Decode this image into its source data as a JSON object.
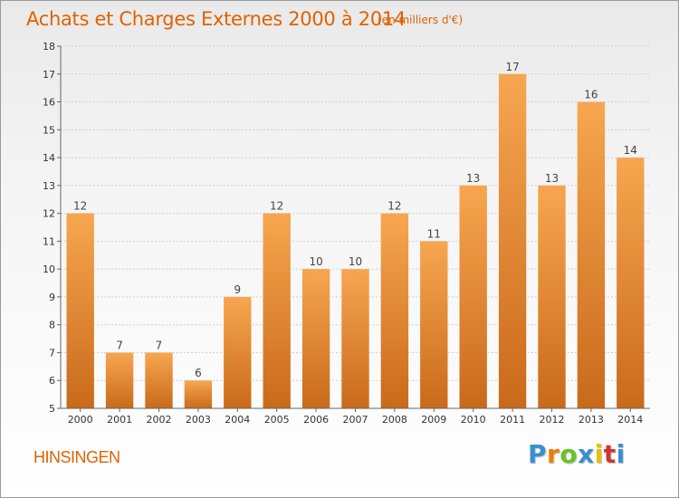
{
  "header": {
    "title": "Achats et Charges Externes 2000 à 2014",
    "subtitle": "(en milliers d'€)"
  },
  "commune": "HINSINGEN",
  "logo": {
    "text": "Proxiti",
    "letter_colors": [
      "#3a8fd0",
      "#f07c00",
      "#6cbf2a",
      "#3a8fd0",
      "#e8c000",
      "#d23232",
      "#3a8fd0"
    ]
  },
  "colors": {
    "accent": "#e06200",
    "bar_top": "#f7a650",
    "bar_bottom": "#c96a1a"
  },
  "chart_data": {
    "type": "bar",
    "categories": [
      "2000",
      "2001",
      "2002",
      "2003",
      "2004",
      "2005",
      "2006",
      "2007",
      "2008",
      "2009",
      "2010",
      "2011",
      "2012",
      "2013",
      "2014"
    ],
    "values": [
      12,
      7,
      7,
      6,
      9,
      12,
      10,
      10,
      12,
      11,
      13,
      17,
      13,
      16,
      14
    ],
    "data_labels": [
      "12",
      "7",
      "7",
      "6",
      "9",
      "12",
      "10",
      "10",
      "12",
      "11",
      "13",
      "17",
      "13",
      "16",
      "14"
    ],
    "title": "Achats et Charges Externes 2000 à 2014",
    "subtitle": "(en milliers d'€)",
    "ylim": [
      5,
      18
    ],
    "yticks": [
      "5",
      "6",
      "7",
      "8",
      "9",
      "10",
      "11",
      "12",
      "13",
      "14",
      "15",
      "16",
      "17",
      "18"
    ],
    "grid": true,
    "legend": "none"
  }
}
